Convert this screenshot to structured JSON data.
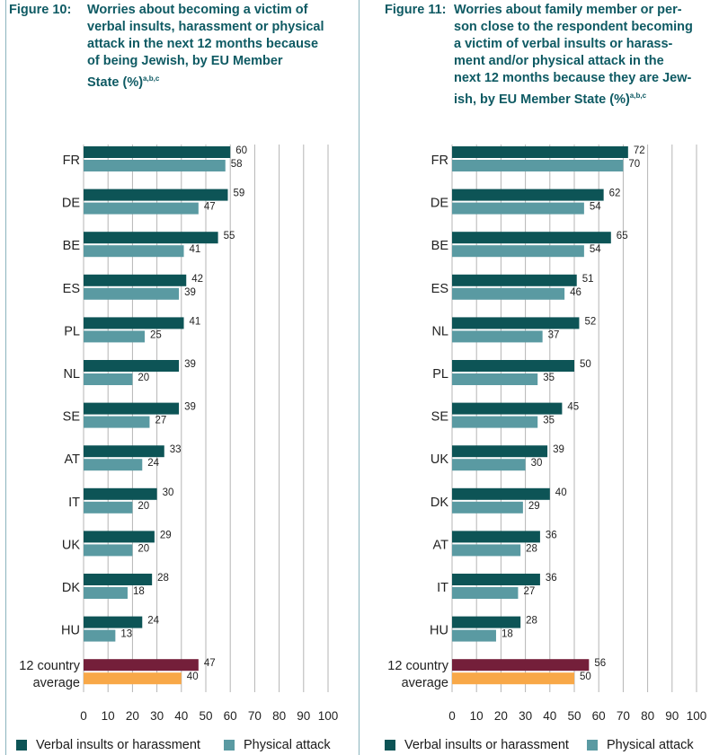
{
  "colors": {
    "verbal": "#0d5456",
    "physical": "#5a9aa2",
    "avg_verbal": "#741f3a",
    "avg_physical": "#f8a848",
    "title": "#0e5a63",
    "grid": "#b5b5b5"
  },
  "legend": {
    "verbal": "Verbal insults or harassment",
    "physical": "Physical attack"
  },
  "figures": [
    {
      "label": "Figure 10:",
      "title_lines": [
        "Worries about becoming a victim of",
        "verbal insults, harassment or physical",
        "attack in the next 12 months because",
        "of being Jewish, by EU Member",
        "State (%)"
      ],
      "footnote": "a,b,c"
    },
    {
      "label": "Figure 11:",
      "title_lines": [
        "Worries about family member or per-",
        "son close to the respondent becoming",
        "a victim of verbal insults or harass-",
        "ment and/or physical attack in the",
        "next 12 months because they are Jew-",
        "ish, by EU Member State (%)"
      ],
      "footnote": "a,b,c"
    }
  ],
  "chart_data": [
    {
      "type": "bar",
      "orientation": "horizontal",
      "categories": [
        "FR",
        "DE",
        "BE",
        "ES",
        "PL",
        "NL",
        "SE",
        "AT",
        "IT",
        "UK",
        "DK",
        "HU",
        "12 country average"
      ],
      "series": [
        {
          "name": "Verbal insults or harassment",
          "values": [
            60,
            59,
            55,
            42,
            41,
            39,
            39,
            33,
            30,
            29,
            28,
            24,
            47
          ]
        },
        {
          "name": "Physical attack",
          "values": [
            58,
            47,
            41,
            39,
            25,
            20,
            27,
            24,
            20,
            20,
            18,
            13,
            40
          ]
        }
      ],
      "xlim": [
        0,
        100
      ],
      "xticks": [
        0,
        10,
        20,
        30,
        40,
        50,
        60,
        70,
        80,
        90,
        100
      ],
      "grid": true,
      "legend": "bottom"
    },
    {
      "type": "bar",
      "orientation": "horizontal",
      "categories": [
        "FR",
        "DE",
        "BE",
        "ES",
        "NL",
        "PL",
        "SE",
        "UK",
        "DK",
        "AT",
        "IT",
        "HU",
        "12 country average"
      ],
      "series": [
        {
          "name": "Verbal insults or harassment",
          "values": [
            72,
            62,
            65,
            51,
            52,
            50,
            45,
            39,
            40,
            36,
            36,
            28,
            56
          ]
        },
        {
          "name": "Physical attack",
          "values": [
            70,
            54,
            54,
            46,
            37,
            35,
            35,
            30,
            29,
            28,
            27,
            18,
            50
          ]
        }
      ],
      "xlim": [
        0,
        100
      ],
      "xticks": [
        0,
        10,
        20,
        30,
        40,
        50,
        60,
        70,
        80,
        90,
        100
      ],
      "grid": true,
      "legend": "bottom"
    }
  ]
}
